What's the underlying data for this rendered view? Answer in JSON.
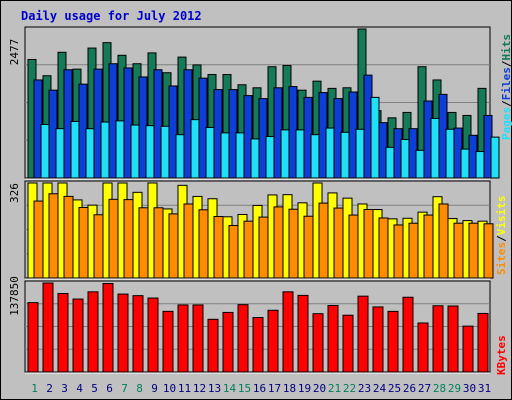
{
  "title": "Daily usage for July 2012",
  "chart_data": [
    {
      "type": "bar",
      "panel": "pages-files-hits",
      "max_label": "2477",
      "ymax": 2477,
      "legend": [
        "Pages",
        "/",
        "Files",
        "/",
        "Hits"
      ],
      "categories": [
        "1",
        "2",
        "3",
        "4",
        "5",
        "6",
        "7",
        "8",
        "9",
        "10",
        "11",
        "12",
        "13",
        "14",
        "15",
        "16",
        "17",
        "18",
        "19",
        "20",
        "21",
        "22",
        "23",
        "24",
        "25",
        "26",
        "27",
        "28",
        "29",
        "30",
        "31"
      ],
      "series": [
        {
          "name": "Hits",
          "color": "#157a57",
          "values": [
            1970,
            1700,
            2090,
            1810,
            2160,
            2250,
            2040,
            1900,
            2080,
            1750,
            2010,
            1880,
            1720,
            1720,
            1550,
            1500,
            1850,
            1870,
            1460,
            1610,
            1490,
            1500,
            2477,
            1120,
            1000,
            1090,
            1850,
            1630,
            1090,
            1040,
            1490
          ]
        },
        {
          "name": "Files",
          "color": "#0e3ed8",
          "values": [
            1630,
            1460,
            1800,
            1560,
            1810,
            1900,
            1830,
            1680,
            1800,
            1530,
            1800,
            1660,
            1470,
            1470,
            1370,
            1320,
            1500,
            1520,
            1340,
            1420,
            1320,
            1430,
            1710,
            920,
            820,
            820,
            1280,
            1390,
            830,
            710,
            1040
          ]
        },
        {
          "name": "Pages",
          "color": "#20e0f8",
          "values": [
            890,
            820,
            940,
            820,
            930,
            950,
            880,
            870,
            860,
            720,
            970,
            840,
            750,
            750,
            650,
            690,
            800,
            800,
            720,
            830,
            760,
            810,
            1340,
            510,
            640,
            460,
            990,
            810,
            480,
            440,
            680
          ]
        }
      ]
    },
    {
      "type": "bar",
      "panel": "sites-visits",
      "max_label": "326",
      "ymax": 326,
      "legend": [
        "Sites",
        "/",
        "Visits"
      ],
      "categories": [
        "1",
        "2",
        "3",
        "4",
        "5",
        "6",
        "7",
        "8",
        "9",
        "10",
        "11",
        "12",
        "13",
        "14",
        "15",
        "16",
        "17",
        "18",
        "19",
        "20",
        "21",
        "22",
        "23",
        "24",
        "25",
        "26",
        "27",
        "28",
        "29",
        "30",
        "31"
      ],
      "series": [
        {
          "name": "Visits",
          "color": "#ffff00",
          "values": [
            326,
            326,
            326,
            268,
            250,
            326,
            326,
            294,
            326,
            237,
            318,
            280,
            272,
            210,
            218,
            249,
            285,
            286,
            258,
            326,
            292,
            274,
            254,
            235,
            203,
            205,
            226,
            279,
            204,
            197,
            195
          ]
        },
        {
          "name": "Sites",
          "color": "#ff8c00",
          "values": [
            264,
            289,
            280,
            242,
            217,
            270,
            269,
            241,
            241,
            220,
            254,
            234,
            211,
            180,
            195,
            209,
            244,
            236,
            212,
            257,
            240,
            216,
            235,
            206,
            182,
            188,
            216,
            254,
            188,
            188,
            186
          ]
        }
      ]
    },
    {
      "type": "bar",
      "panel": "kbytes",
      "max_label": "137850",
      "ymax": 137850,
      "legend": [
        "KBytes"
      ],
      "categories": [
        "1",
        "2",
        "3",
        "4",
        "5",
        "6",
        "7",
        "8",
        "9",
        "10",
        "11",
        "12",
        "13",
        "14",
        "15",
        "16",
        "17",
        "18",
        "19",
        "20",
        "21",
        "22",
        "23",
        "24",
        "25",
        "26",
        "27",
        "28",
        "29",
        "30",
        "31"
      ],
      "series": [
        {
          "name": "KBytes",
          "color": "#ff0000",
          "values": [
            107470,
            137850,
            121570,
            113010,
            124190,
            137040,
            120710,
            118270,
            114560,
            93940,
            103850,
            103850,
            81620,
            92290,
            104300,
            84410,
            95630,
            124190,
            118680,
            90320,
            103040,
            87970,
            117460,
            100790,
            93930,
            115780,
            75910,
            102630,
            102220,
            71020,
            90720
          ]
        }
      ]
    }
  ],
  "weekend_days": [
    "1",
    "7",
    "8",
    "14",
    "15",
    "21",
    "22",
    "28",
    "29"
  ],
  "colors": {
    "weekday_label": "#000080",
    "weekend_label": "#00805c",
    "background": "#c0c0c0"
  }
}
